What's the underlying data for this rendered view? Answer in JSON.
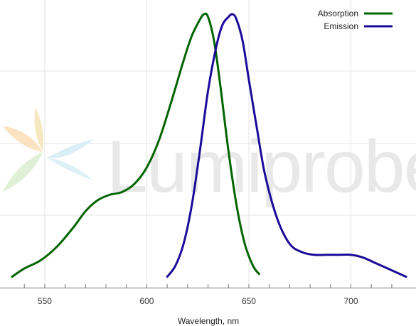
{
  "watermark": {
    "text": "Lumiprobe"
  },
  "chart_data": {
    "type": "line",
    "title": "",
    "xlabel": "Wavelength, nm",
    "ylabel": "",
    "xlim": [
      534,
      727
    ],
    "ylim": [
      0,
      1
    ],
    "x_ticks": [
      550,
      600,
      650,
      700
    ],
    "grid": true,
    "legend_position": "top-right",
    "series": [
      {
        "name": "Absorption",
        "color": "#006400",
        "x": [
          534,
          540,
          548,
          556,
          564,
          570,
          576,
          582,
          588,
          594,
          600,
          606,
          612,
          618,
          622,
          626,
          628,
          630,
          633,
          636,
          640,
          644,
          648,
          652,
          655
        ],
        "y": [
          0.04,
          0.07,
          0.1,
          0.15,
          0.22,
          0.28,
          0.32,
          0.34,
          0.35,
          0.38,
          0.44,
          0.54,
          0.68,
          0.83,
          0.92,
          0.98,
          1.0,
          0.99,
          0.9,
          0.74,
          0.5,
          0.3,
          0.16,
          0.08,
          0.05
        ]
      },
      {
        "name": "Emission",
        "color": "#1a0a99",
        "x": [
          610,
          614,
          618,
          622,
          626,
          630,
          634,
          637,
          640,
          642,
          644,
          647,
          650,
          654,
          658,
          664,
          670,
          676,
          682,
          688,
          694,
          700,
          706,
          712,
          718,
          724,
          727
        ],
        "y": [
          0.04,
          0.08,
          0.16,
          0.3,
          0.5,
          0.72,
          0.88,
          0.96,
          0.99,
          1.0,
          0.98,
          0.9,
          0.76,
          0.58,
          0.41,
          0.25,
          0.16,
          0.13,
          0.12,
          0.12,
          0.12,
          0.12,
          0.11,
          0.09,
          0.07,
          0.05,
          0.04
        ]
      }
    ]
  }
}
